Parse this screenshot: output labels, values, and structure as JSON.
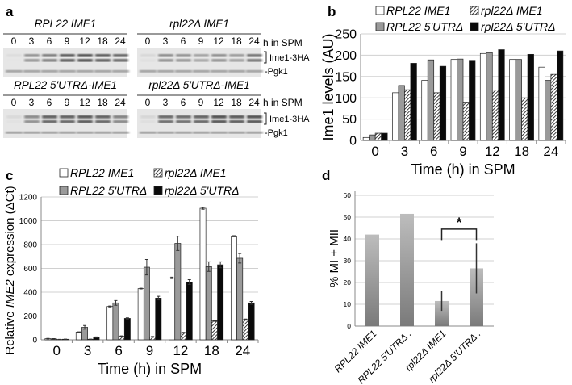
{
  "panel_labels": {
    "a": "a",
    "b": "b",
    "c": "c",
    "d": "d"
  },
  "panel_a": {
    "blots": [
      {
        "title": "RPL22 IME1",
        "lanes": [
          "0",
          "3",
          "6",
          "9",
          "12",
          "18",
          "24"
        ],
        "intensity": [
          0.03,
          0.45,
          0.57,
          0.76,
          0.82,
          0.76,
          0.69
        ]
      },
      {
        "title": "rpl22Δ IME1",
        "lanes": [
          "0",
          "3",
          "6",
          "9",
          "12",
          "18",
          "24"
        ],
        "intensity": [
          0.06,
          0.48,
          0.45,
          0.36,
          0.47,
          0.4,
          0.62
        ]
      },
      {
        "title": "RPL22  5'UTRΔ-IME1",
        "lanes": [
          "0",
          "3",
          "6",
          "9",
          "12",
          "18",
          "24"
        ],
        "intensity": [
          0.05,
          0.52,
          0.76,
          0.76,
          0.82,
          0.76,
          0.56
        ]
      },
      {
        "title": "rpl22Δ 5'UTRΔ-IME1",
        "lanes": [
          "0",
          "3",
          "6",
          "9",
          "12",
          "18",
          "24"
        ],
        "intensity": [
          0.07,
          0.72,
          0.7,
          0.75,
          0.85,
          0.81,
          0.84
        ]
      }
    ],
    "time_label": "h in SPM",
    "band_label_ime1": "Ime1-3HA",
    "band_label_pgk1": "-Pgk1"
  },
  "chart_data": [
    {
      "id": "b",
      "type": "bar",
      "title": "",
      "xlabel": "Time (h) in SPM",
      "ylabel": "Ime1 levels (AU)",
      "ylim": [
        0,
        250
      ],
      "yticks": [
        0,
        50,
        100,
        150,
        200,
        250
      ],
      "categories": [
        "0",
        "3",
        "6",
        "9",
        "12",
        "18",
        "24"
      ],
      "grid": true,
      "legend": "top",
      "series": [
        {
          "name": "RPL22 IME1",
          "style": "white",
          "values": [
            7,
            112,
            141,
            190,
            204,
            190,
            172
          ]
        },
        {
          "name": "RPL22 5'UTRΔ",
          "style": "grey",
          "values": [
            13,
            129,
            189,
            191,
            206,
            190,
            141
          ]
        },
        {
          "name": "rpl22Δ  IME1",
          "style": "hatched",
          "values": [
            17,
            119,
            112,
            90,
            118,
            100,
            155
          ]
        },
        {
          "name": "rpl22Δ  5'UTRΔ",
          "style": "black",
          "values": [
            17,
            181,
            174,
            188,
            213,
            202,
            210
          ]
        }
      ]
    },
    {
      "id": "c",
      "type": "bar",
      "title": "",
      "xlabel": "Time (h) in SPM",
      "ylabel_prefix": "Relative ",
      "ylabel_italic": "IME2",
      "ylabel_suffix": " expression (ΔCt)",
      "ylim": [
        0,
        1200
      ],
      "yticks": [
        0,
        200,
        400,
        600,
        800,
        1000,
        1200
      ],
      "categories": [
        "0",
        "3",
        "6",
        "9",
        "12",
        "18",
        "24"
      ],
      "grid": true,
      "legend": "top",
      "series": [
        {
          "name": "RPL22 IME1",
          "style": "white",
          "values": [
            10,
            65,
            280,
            430,
            520,
            1105,
            870
          ],
          "err": [
            2,
            2,
            4,
            3,
            6,
            8,
            5
          ]
        },
        {
          "name": "RPL22 5'UTRΔ",
          "style": "grey",
          "values": [
            8,
            105,
            310,
            610,
            810,
            615,
            685
          ],
          "err": [
            2,
            15,
            20,
            65,
            60,
            40,
            40
          ]
        },
        {
          "name": "rpl22Δ  IME1",
          "style": "hatched",
          "values": [
            3,
            5,
            30,
            25,
            60,
            160,
            170
          ],
          "err": [
            1,
            1,
            3,
            3,
            3,
            4,
            5
          ]
        },
        {
          "name": "rpl22Δ  5'UTRΔ",
          "style": "black",
          "values": [
            5,
            22,
            180,
            350,
            485,
            630,
            310
          ],
          "err": [
            1,
            3,
            5,
            15,
            20,
            25,
            12
          ]
        }
      ]
    },
    {
      "id": "d",
      "type": "bar",
      "title": "",
      "xlabel": "",
      "ylabel": "% MI + MII",
      "ylim": [
        0,
        60
      ],
      "yticks": [
        0,
        10,
        20,
        30,
        40,
        50,
        60
      ],
      "categories": [
        "RPL22 IME1",
        "RPL22 5'UTRΔ .",
        "rpl22Δ  IME1",
        "rpl22Δ  5'UTRΔ ."
      ],
      "values": [
        42,
        51.5,
        11.5,
        26.5
      ],
      "err_low": [
        null,
        null,
        7,
        15
      ],
      "err_high": [
        null,
        null,
        16,
        38
      ],
      "significance": {
        "between": [
          2,
          3
        ],
        "label": "*"
      }
    }
  ]
}
